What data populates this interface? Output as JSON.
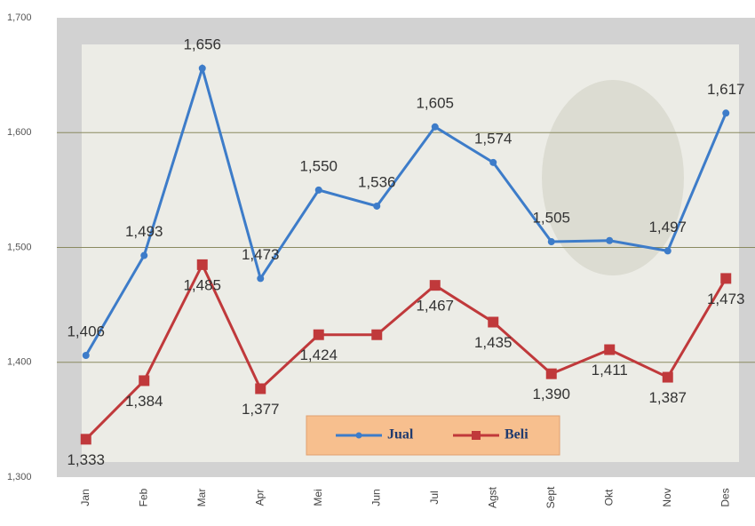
{
  "chart_data": {
    "type": "line",
    "categories": [
      "Jan",
      "Feb",
      "Mar",
      "Apr",
      "Mei",
      "Jun",
      "Jul",
      "Agst",
      "Sept",
      "Okt",
      "Nov",
      "Des"
    ],
    "series": [
      {
        "name": "Jual",
        "color": "#3d7cc9",
        "values": [
          1406,
          1493,
          1656,
          1473,
          1550,
          1536,
          1605,
          1574,
          1505,
          1506,
          1497,
          1617
        ],
        "value_labels": [
          "1,406",
          "1,493",
          "1,656",
          "1,473",
          "1,550",
          "1,536",
          "1,605",
          "1,574",
          "1,505",
          null,
          "1,497",
          "1,617"
        ]
      },
      {
        "name": "Beli",
        "color": "#c0393b",
        "values": [
          1333,
          1384,
          1485,
          1377,
          1424,
          1424,
          1467,
          1435,
          1390,
          1411,
          1387,
          1473
        ],
        "value_labels": [
          "1,333",
          "1,384",
          "1,485",
          "1,377",
          "1,424",
          null,
          "1,467",
          "1,435",
          "1,390",
          "1,411",
          "1,387",
          "1,473"
        ]
      }
    ],
    "ylim": [
      1300,
      1700
    ],
    "yticks": [
      {
        "value": 1300,
        "label": "1,300"
      },
      {
        "value": 1400,
        "label": "1,400"
      },
      {
        "value": 1500,
        "label": "1,500"
      },
      {
        "value": 1600,
        "label": "1,600"
      },
      {
        "value": 1700,
        "label": "1,700"
      }
    ],
    "grid": true,
    "legend": "bottom"
  }
}
